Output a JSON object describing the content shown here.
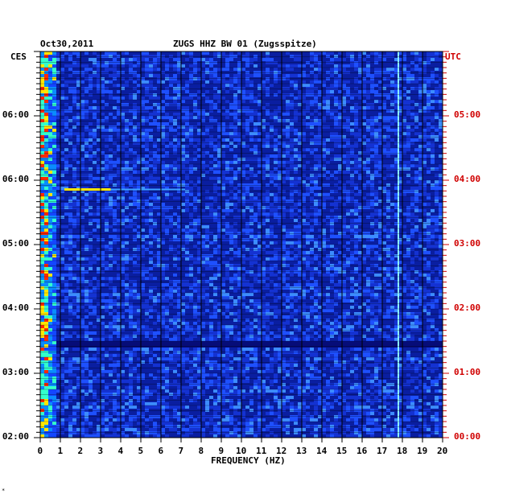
{
  "header": {
    "date": "Oct30,2011",
    "station": "ZUGS HHZ BW 01 (Zugsspitze)",
    "tz_left": "CES",
    "tz_right": "UTC"
  },
  "corner_mark": "*",
  "colors": {
    "background_spectrum": "#0a1ea0",
    "right_axis_labels": "#d00000",
    "gridlines": "#000000"
  },
  "chart_data": {
    "type": "heatmap",
    "title": "ZUGS HHZ BW 01 (Zugsspitze)",
    "date": "Oct30,2011",
    "xlabel": "FREQUENCY (HZ)",
    "x_ticks": [
      "0",
      "1",
      "2",
      "3",
      "4",
      "5",
      "6",
      "7",
      "8",
      "9",
      "10",
      "11",
      "12",
      "13",
      "14",
      "15",
      "16",
      "17",
      "18",
      "19",
      "20"
    ],
    "xlim": [
      0,
      20
    ],
    "y_ticks_left": [
      "02:00",
      "03:00",
      "04:00",
      "05:00",
      "06:00",
      "06:00"
    ],
    "y_ticks_right": [
      "00:00",
      "01:00",
      "02:00",
      "03:00",
      "04:00",
      "05:00"
    ],
    "y_tick_hours_utc": [
      0,
      1,
      2,
      3,
      4,
      5
    ],
    "ylim_utc_hours": [
      0,
      6
    ],
    "left_timezone": "CES",
    "right_timezone": "UTC",
    "features": {
      "low_freq_energy_band_hz": [
        0,
        0.8
      ],
      "persistent_line_hz": 17.8,
      "weak_line_hz": 17.0,
      "horizontal_event_utc_hour": 3.85,
      "horizontal_event_freq_range_hz": [
        1.2,
        3.5
      ],
      "quiet_band_utc_hour": 1.45
    },
    "grid": true
  }
}
